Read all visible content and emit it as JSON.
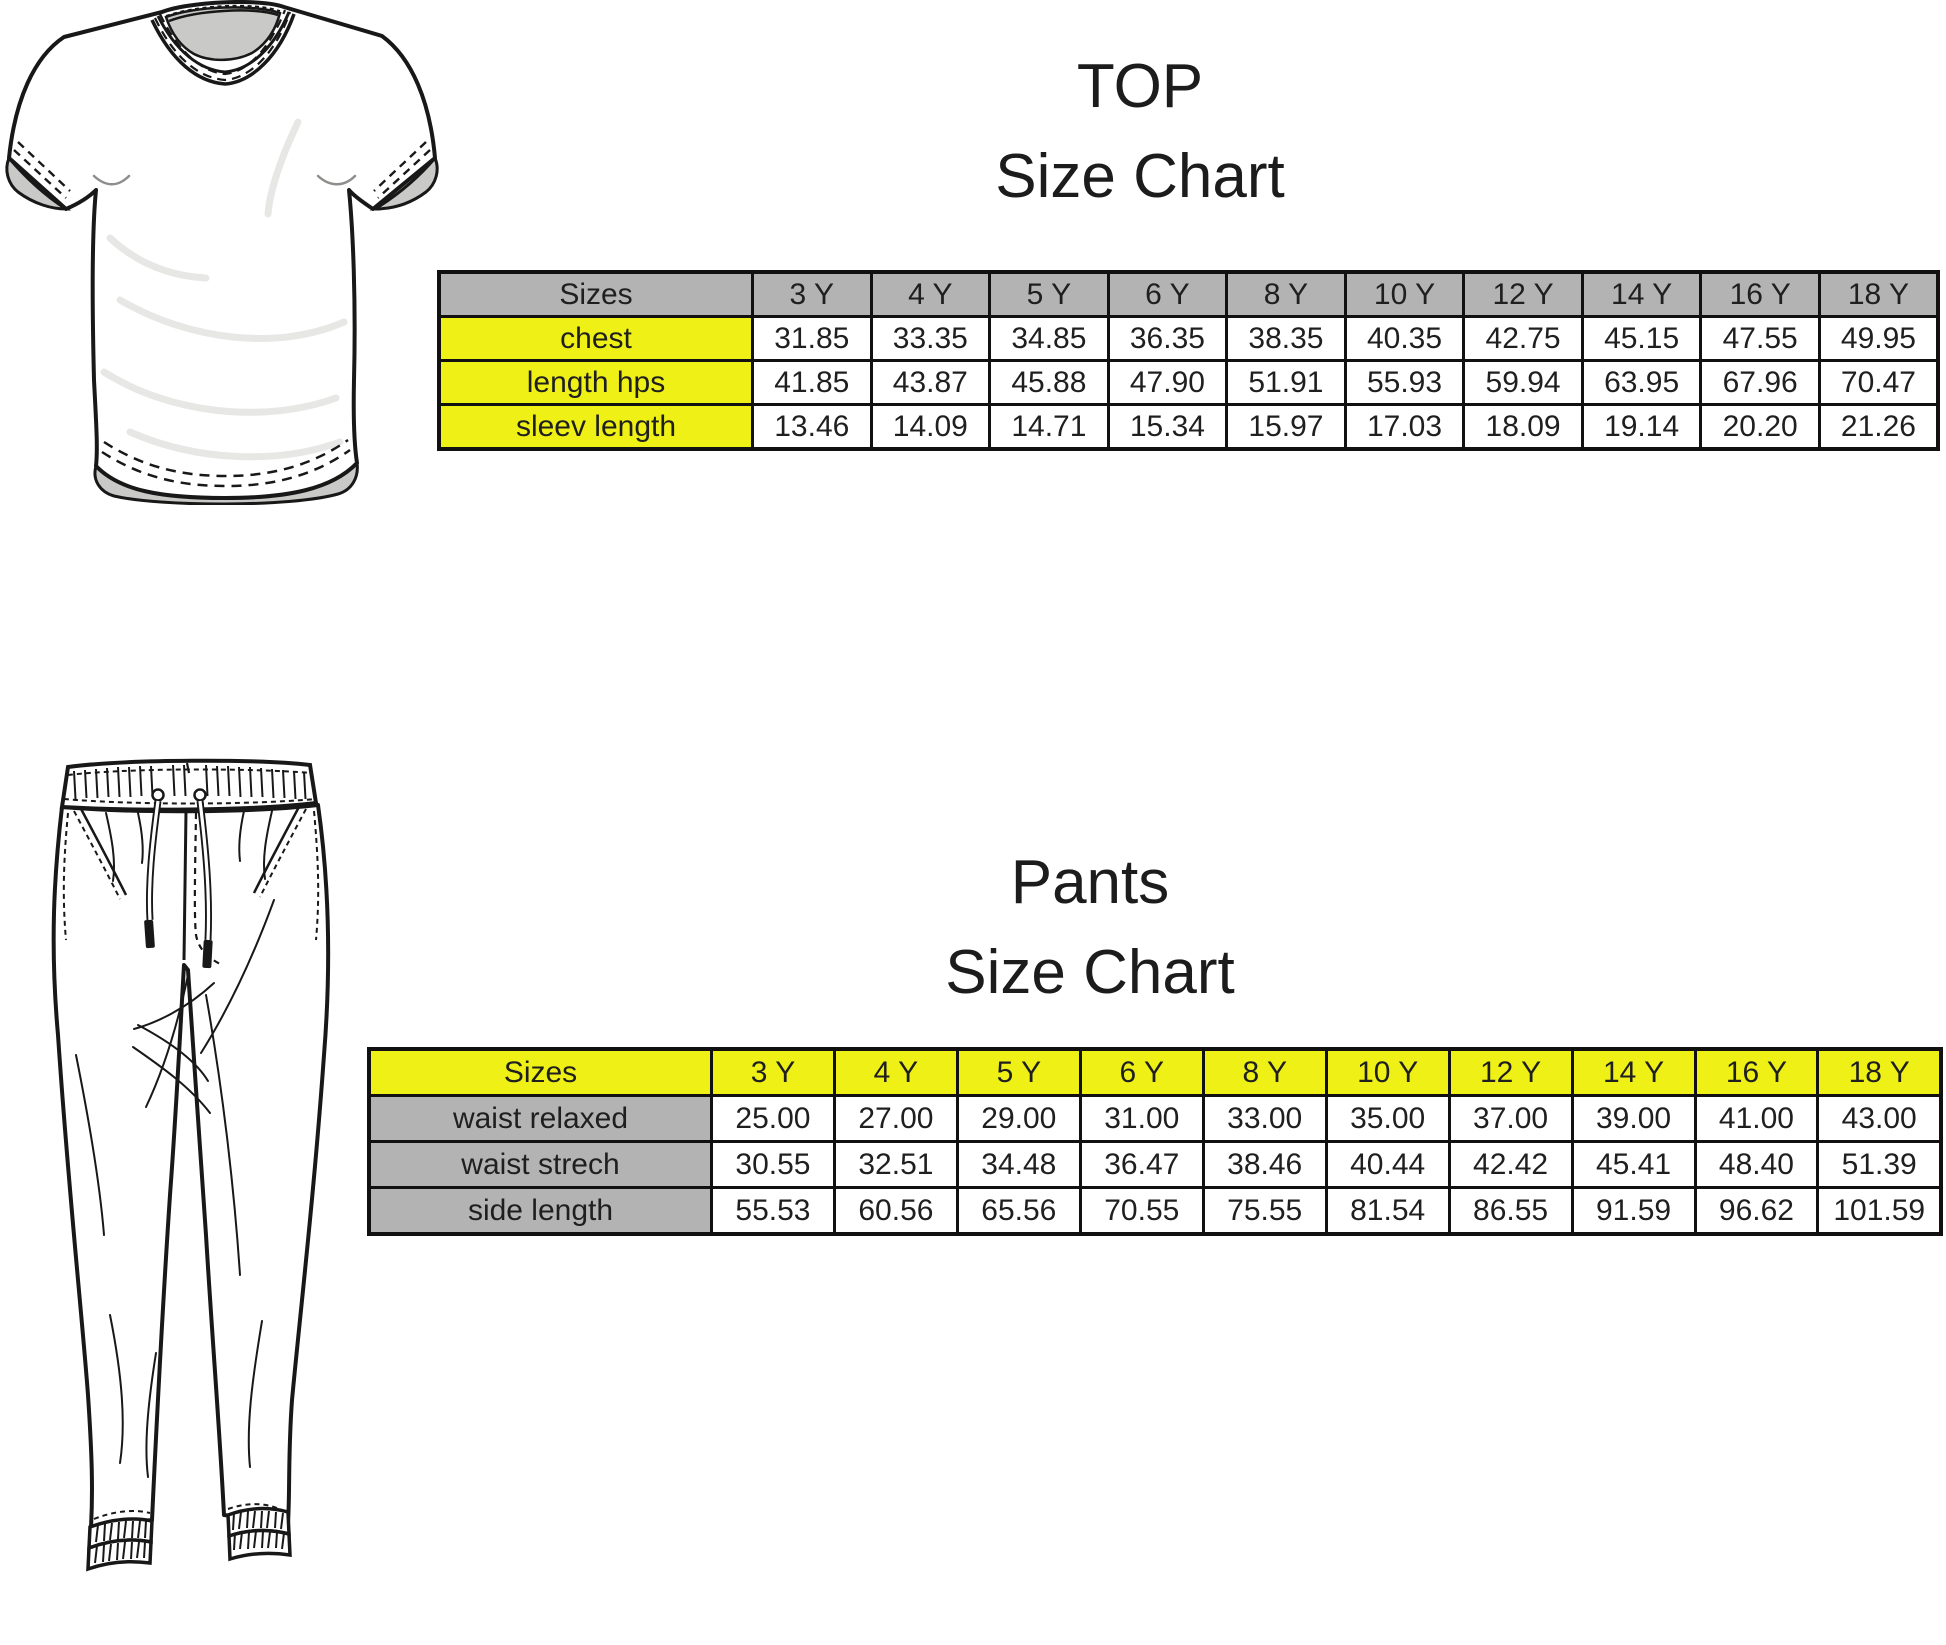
{
  "top_section": {
    "title_line1": "TOP",
    "title_line2": "Size Chart",
    "illustration": "tshirt-flat-sketch",
    "table": {
      "header": [
        "Sizes",
        "3 Y",
        "4 Y",
        "5 Y",
        "6 Y",
        "8 Y",
        "10 Y",
        "12 Y",
        "14 Y",
        "16 Y",
        "18 Y"
      ],
      "rows": [
        {
          "label": "chest",
          "values": [
            "31.85",
            "33.35",
            "34.85",
            "36.35",
            "38.35",
            "40.35",
            "42.75",
            "45.15",
            "47.55",
            "49.95"
          ]
        },
        {
          "label": "length hps",
          "values": [
            "41.85",
            "43.87",
            "45.88",
            "47.90",
            "51.91",
            "55.93",
            "59.94",
            "63.95",
            "67.96",
            "70.47"
          ]
        },
        {
          "label": "sleev length",
          "values": [
            "13.46",
            "14.09",
            "14.71",
            "15.34",
            "15.97",
            "17.03",
            "18.09",
            "19.14",
            "20.20",
            "21.26"
          ]
        }
      ]
    }
  },
  "pants_section": {
    "title_line1": "Pants",
    "title_line2": "Size Chart",
    "illustration": "jogger-pants-flat-sketch",
    "table": {
      "header": [
        "Sizes",
        "3 Y",
        "4 Y",
        "5 Y",
        "6 Y",
        "8 Y",
        "10 Y",
        "12 Y",
        "14 Y",
        "16 Y",
        "18 Y"
      ],
      "rows": [
        {
          "label": "waist relaxed",
          "values": [
            "25.00",
            "27.00",
            "29.00",
            "31.00",
            "33.00",
            "35.00",
            "37.00",
            "39.00",
            "41.00",
            "43.00"
          ]
        },
        {
          "label": "waist strech",
          "values": [
            "30.55",
            "32.51",
            "34.48",
            "36.47",
            "38.46",
            "40.44",
            "42.42",
            "45.41",
            "48.40",
            "51.39"
          ]
        },
        {
          "label": "side length",
          "values": [
            "55.53",
            "60.56",
            "65.56",
            "70.55",
            "75.55",
            "81.54",
            "86.55",
            "91.59",
            "96.62",
            "101.59"
          ]
        }
      ]
    }
  },
  "colors": {
    "header_gray": "#b3b3b3",
    "highlight_yellow": "#eef016",
    "table_border": "#111111",
    "text": "#1f1f1f",
    "sketch_inner_gray": "#c9c9c7"
  }
}
